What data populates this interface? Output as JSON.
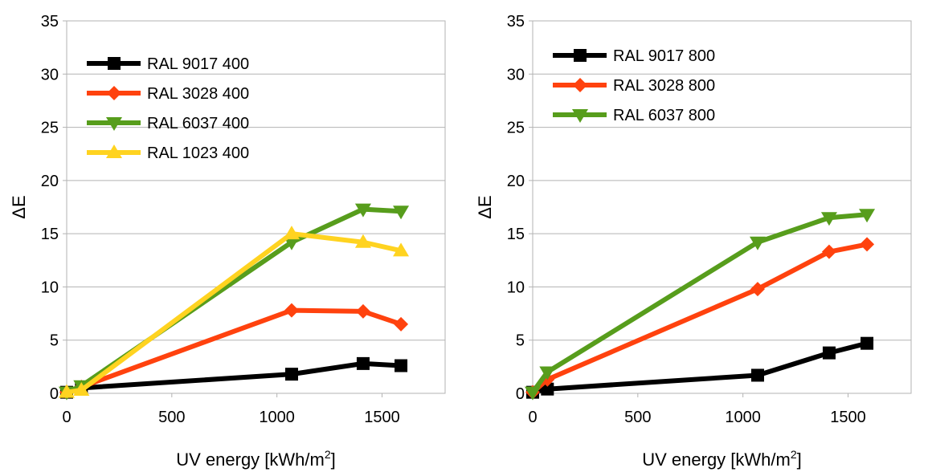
{
  "chart_data": [
    {
      "type": "line",
      "xlabel": "UV energy [kWh/m",
      "xlabel_sup": "2",
      "xlabel_end": "]",
      "ylabel": "ΔE",
      "xlim": [
        0,
        1800
      ],
      "ylim": [
        0,
        35
      ],
      "xticks": [
        "0",
        "500",
        "1000",
        "1500"
      ],
      "yticks": [
        "0",
        "5",
        "10",
        "15",
        "20",
        "25",
        "30",
        "35"
      ],
      "grid": "horizontal",
      "legend_position": "top-left",
      "series": [
        {
          "name": "RAL 9017 400",
          "color": "#000000",
          "marker": "square",
          "x": [
            0,
            70,
            1070,
            1410,
            1590
          ],
          "y": [
            0.1,
            0.5,
            1.8,
            2.8,
            2.6
          ]
        },
        {
          "name": "RAL 3028 400",
          "color": "#ff420e",
          "marker": "diamond",
          "x": [
            0,
            70,
            1070,
            1410,
            1590
          ],
          "y": [
            0.1,
            0.6,
            7.8,
            7.7,
            6.5
          ]
        },
        {
          "name": "RAL 6037 400",
          "color": "#579d1c",
          "marker": "triangle-down",
          "x": [
            0,
            70,
            1070,
            1410,
            1590
          ],
          "y": [
            0.1,
            0.7,
            14.2,
            17.3,
            17.1
          ]
        },
        {
          "name": "RAL 1023 400",
          "color": "#ffd320",
          "marker": "triangle-up",
          "x": [
            0,
            70,
            1070,
            1410,
            1590
          ],
          "y": [
            0.1,
            0.3,
            15.0,
            14.2,
            13.4
          ]
        }
      ]
    },
    {
      "type": "line",
      "xlabel": "UV energy [kWh/m",
      "xlabel_sup": "2",
      "xlabel_end": "]",
      "ylabel": "ΔE",
      "xlim": [
        0,
        1800
      ],
      "ylim": [
        0,
        35
      ],
      "xticks": [
        "0",
        "500",
        "1000",
        "1500"
      ],
      "yticks": [
        "0",
        "5",
        "10",
        "15",
        "20",
        "25",
        "30",
        "35"
      ],
      "grid": "horizontal",
      "legend_position": "top-left",
      "series": [
        {
          "name": "RAL 9017 800",
          "color": "#000000",
          "marker": "square",
          "x": [
            0,
            70,
            1070,
            1410,
            1590
          ],
          "y": [
            0.1,
            0.4,
            1.7,
            3.8,
            4.7
          ]
        },
        {
          "name": "RAL 3028 800",
          "color": "#ff420e",
          "marker": "diamond",
          "x": [
            0,
            70,
            1070,
            1410,
            1590
          ],
          "y": [
            0.1,
            1.3,
            9.8,
            13.3,
            14.0
          ]
        },
        {
          "name": "RAL 6037 800",
          "color": "#579d1c",
          "marker": "triangle-down",
          "x": [
            0,
            70,
            1070,
            1410,
            1590
          ],
          "y": [
            0.1,
            2.0,
            14.2,
            16.5,
            16.8
          ]
        }
      ]
    }
  ]
}
